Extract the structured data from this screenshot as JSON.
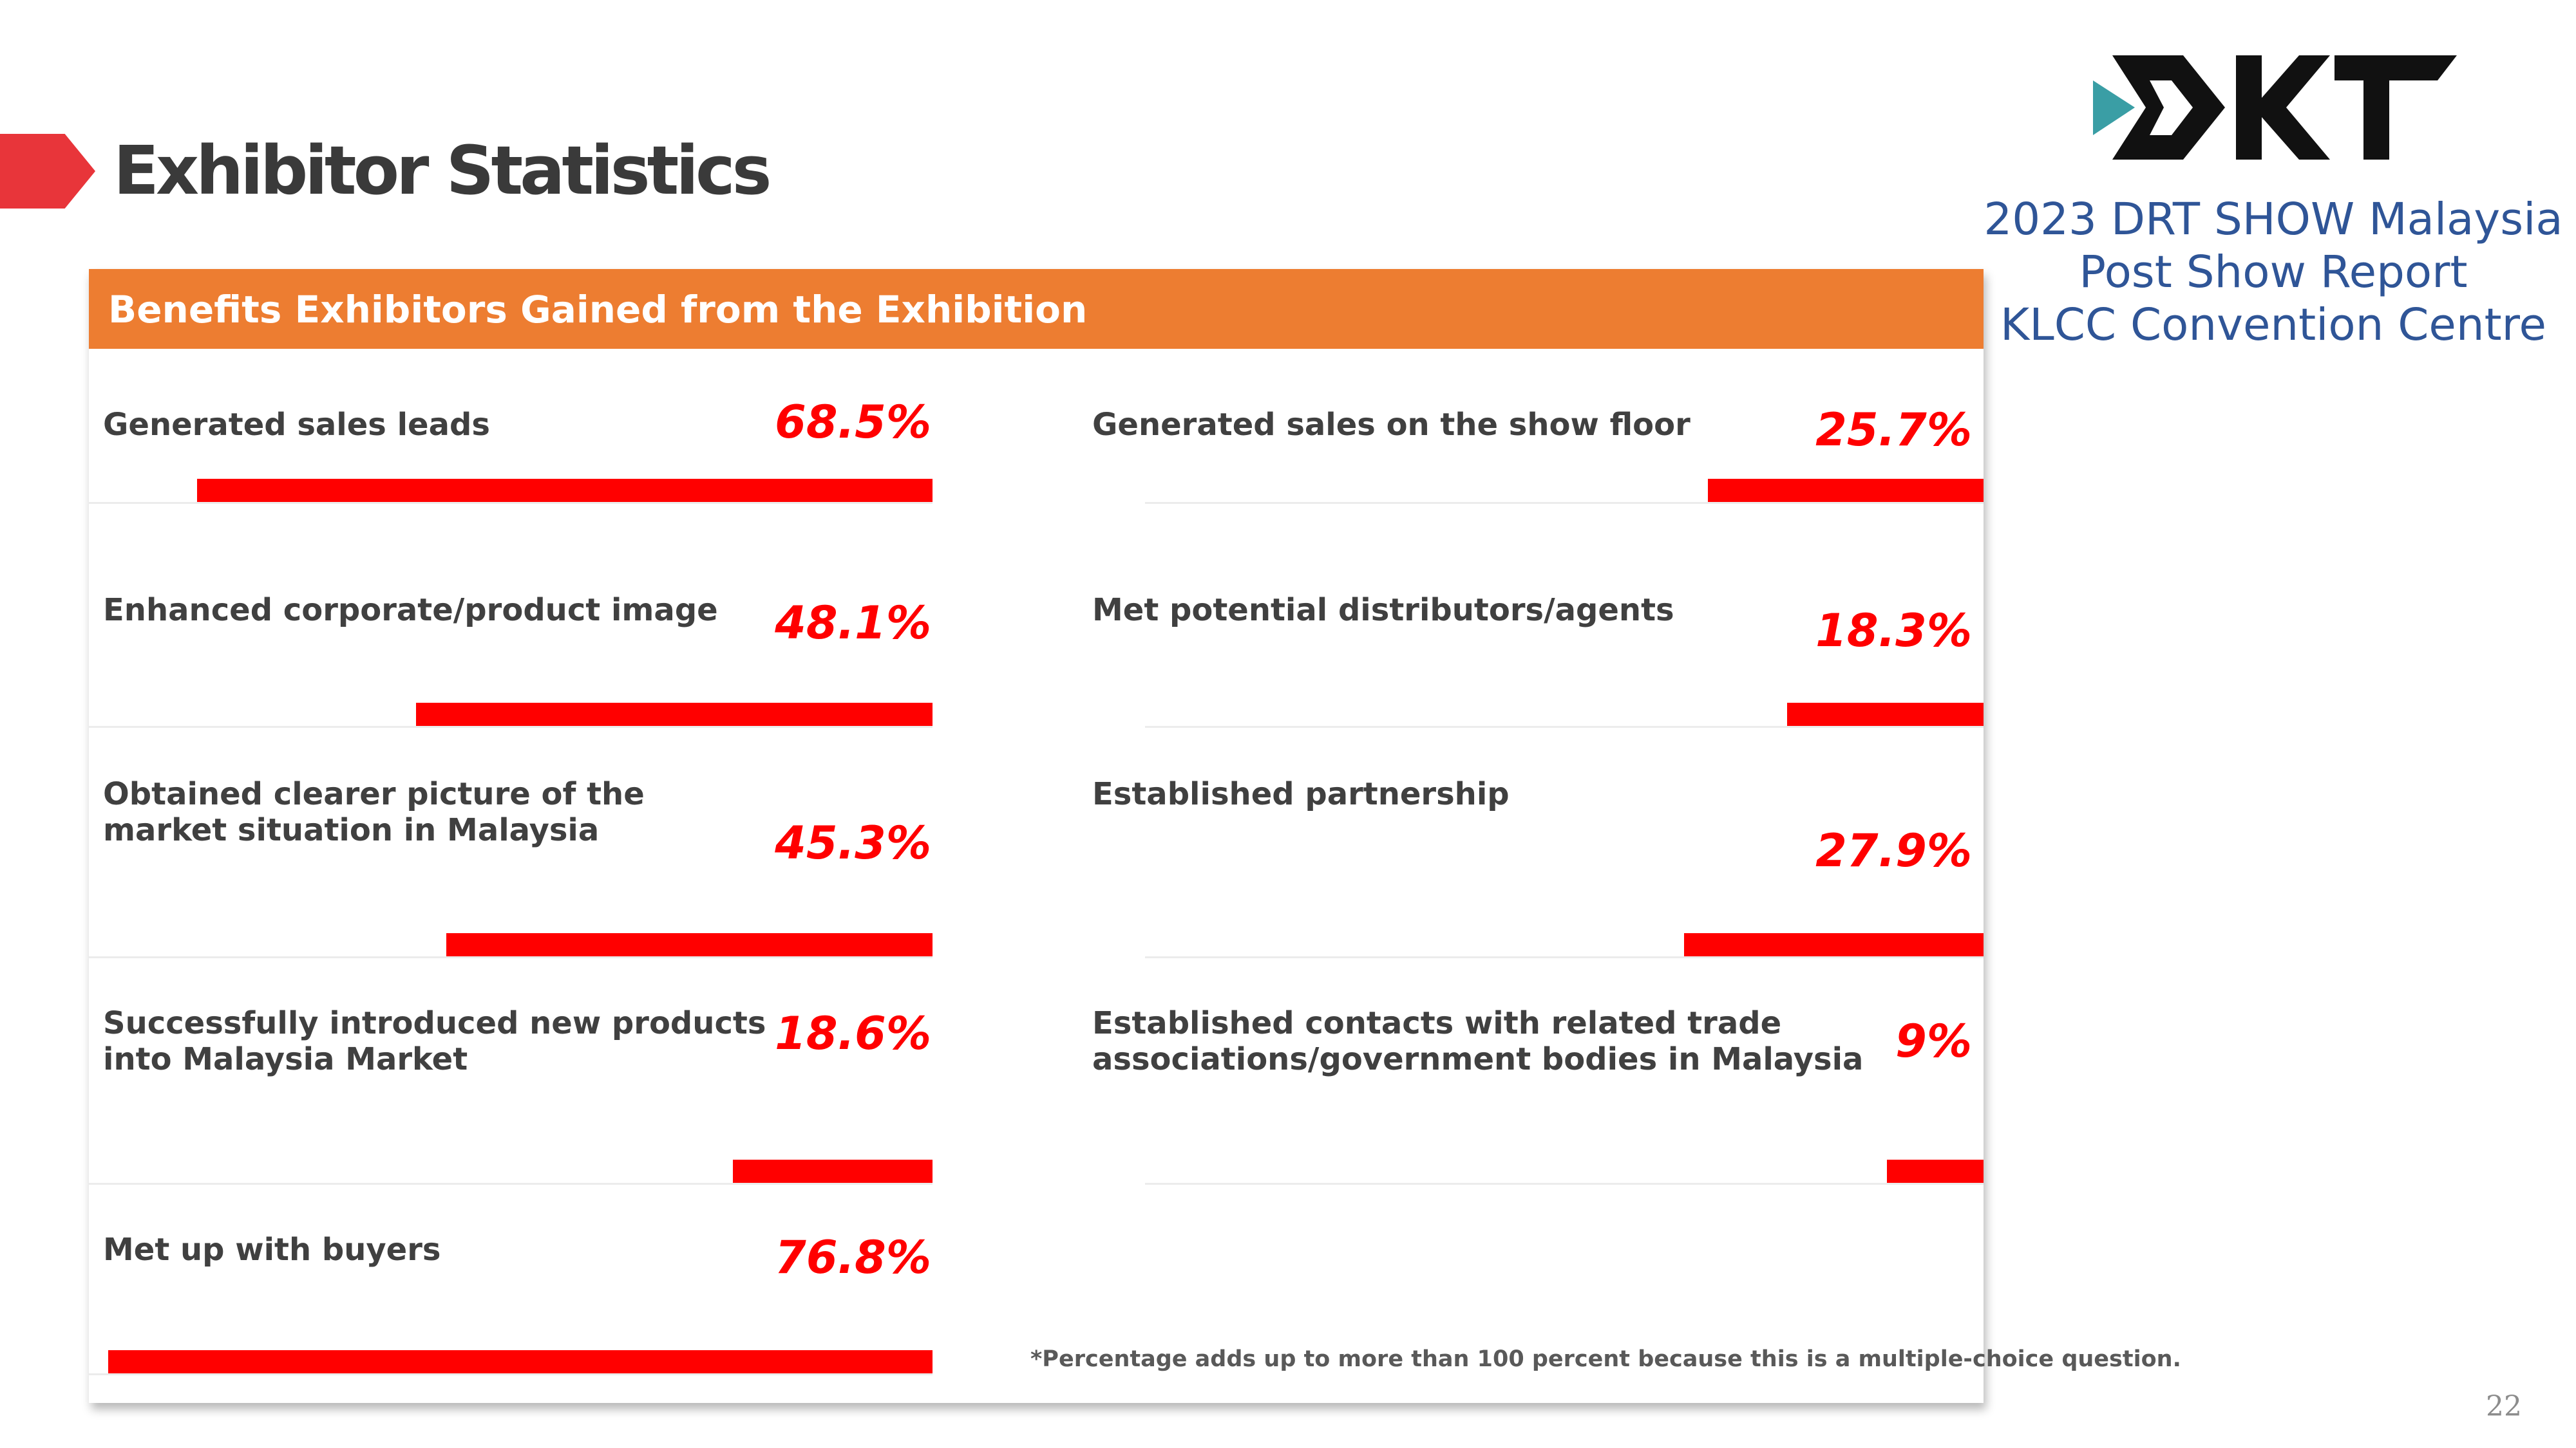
{
  "page": {
    "title": "Exhibitor Statistics",
    "page_number": "22"
  },
  "report": {
    "logo_name": "dkt-logo",
    "line1": "2023 DRT SHOW Malaysia",
    "line2": "Post Show Report",
    "line3": "KLCC Convention Centre"
  },
  "panel": {
    "header": "Benefits Exhibitors Gained from the Exhibition",
    "footnote": "*Percentage adds up to more than 100 percent because this is a multiple-choice question."
  },
  "chart_data": {
    "type": "bar",
    "title": "Benefits Exhibitors Gained from the Exhibition",
    "unit": "%",
    "xlim": [
      0,
      100
    ],
    "orientation": "horizontal",
    "categories": [
      "Generated sales leads",
      "Enhanced corporate/product image",
      "Obtained clearer picture of the market situation in Malaysia",
      "Successfully introduced new products into Malaysia Market",
      "Met up with buyers",
      "Generated sales on the show floor",
      "Met potential distributors/agents",
      "Established partnership",
      "Established contacts with related trade associations/government bodies in Malaysia"
    ],
    "items": [
      {
        "col": 0,
        "row": 0,
        "label_lines": [
          "Generated sales leads"
        ],
        "value": 68.5,
        "display": "68.5%"
      },
      {
        "col": 0,
        "row": 1,
        "label_lines": [
          "Enhanced corporate/product image"
        ],
        "value": 48.1,
        "display": "48.1%"
      },
      {
        "col": 0,
        "row": 2,
        "label_lines": [
          "Obtained clearer picture of the",
          "market situation in Malaysia"
        ],
        "value": 45.3,
        "display": "45.3%"
      },
      {
        "col": 0,
        "row": 3,
        "label_lines": [
          "Successfully introduced new products",
          "into Malaysia Market"
        ],
        "value": 18.6,
        "display": "18.6%"
      },
      {
        "col": 0,
        "row": 4,
        "label_lines": [
          "Met up with buyers"
        ],
        "value": 76.8,
        "display": "76.8%"
      },
      {
        "col": 1,
        "row": 0,
        "label_lines": [
          "Generated sales on the show floor"
        ],
        "value": 25.7,
        "display": "25.7%"
      },
      {
        "col": 1,
        "row": 1,
        "label_lines": [
          "Met potential distributors/agents"
        ],
        "value": 18.3,
        "display": "18.3%"
      },
      {
        "col": 1,
        "row": 2,
        "label_lines": [
          "Established partnership"
        ],
        "value": 27.9,
        "display": "27.9%"
      },
      {
        "col": 1,
        "row": 3,
        "label_lines": [
          "Established contacts with related trade",
          "associations/government bodies in Malaysia"
        ],
        "value": 9,
        "display": "9%"
      }
    ],
    "colors": {
      "bar": "#ff0000",
      "header": "#ed7d31",
      "value_text": "#ff0000"
    }
  }
}
